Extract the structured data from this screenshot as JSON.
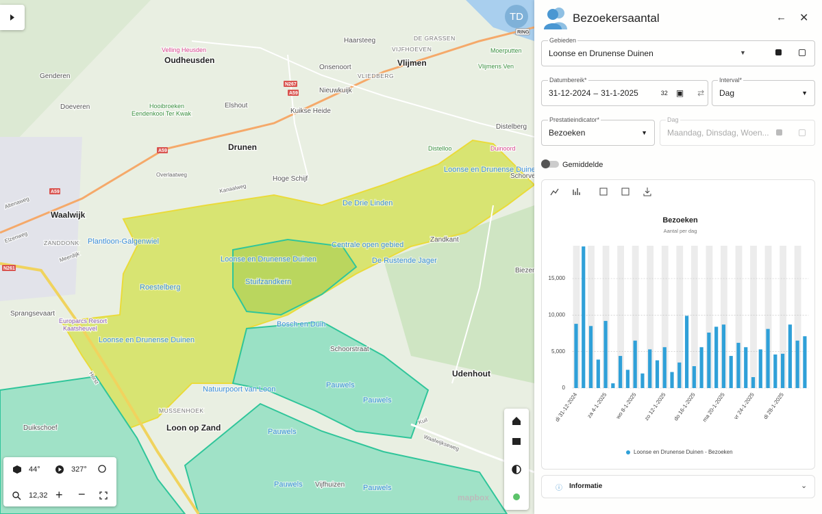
{
  "map": {
    "labels": [
      "Oudheusden",
      "Velling Heusden",
      "Genderen",
      "Hooibroeken",
      "Eendenkooi Ter Kwak",
      "Doeveren",
      "Elshout",
      "Kuikse Heide",
      "Nieuwkuijk",
      "Onsenoort",
      "Haarsteeg",
      "Vlijmen",
      "VIJFHOEVEN",
      "VLIEDBERG",
      "DE GRASSEN",
      "Moerputten",
      "Vlijmens Ven",
      "Drunen",
      "Distelloo",
      "Duinoord",
      "Distelberg",
      "Loonse en Drunense Duinen",
      "Hoge Schijf",
      "Overlaatweg",
      "De Drie Linden",
      "Waalwijk",
      "ZANDDONK",
      "Plantloon-Galgenwiel",
      "Zandkant",
      "Centrale open gebied",
      "Loonse en Drunense Duinen",
      "De Rustende Jager",
      "Biezenmo",
      "Stuifzandkern",
      "Roestelberg",
      "Sprangsevaart",
      "Europarcs Resort",
      "Kaatsheuvel",
      "Bosch en Duin",
      "Loonse en Drunense Duinen",
      "Schoorstraat",
      "Udenhout",
      "Natuurpoort van Loon",
      "MUSSENHOEK",
      "Pauwels",
      "Pauwels",
      "Loon op Zand",
      "Duikschoef",
      "Pauwels",
      "Pauwels",
      "Vijfhuizen",
      "Pauwels",
      "Schorvert",
      "Kanaalweg",
      "Altenaweg",
      "Elzenweg",
      "Meerdijk",
      "Horst",
      "Kuil",
      "Waalwijkseweg"
    ],
    "road_shields": [
      "A59",
      "N267",
      "A59",
      "A59",
      "N261",
      "RING"
    ],
    "attribution": "mapbox",
    "avatar": "TD",
    "controls": {
      "pitch": "44°",
      "bearing": "327°",
      "zoom": "12,32"
    }
  },
  "panel": {
    "title": "Bezoekersaantal",
    "gebieden": {
      "label": "Gebieden",
      "value": "Loonse en Drunense Duinen"
    },
    "datumbereik": {
      "label": "Datumbereik*",
      "start": "31-12-2024",
      "separator": "–",
      "end": "31-1-2025",
      "days": 32
    },
    "interval": {
      "label": "Interval*",
      "value": "Dag"
    },
    "prestatieindicator": {
      "label": "Prestatieindicator*",
      "value": "Bezoeken"
    },
    "dag": {
      "label": "Dag",
      "value": "Maandag, Dinsdag, Woen..."
    },
    "gemiddelde": "Gemiddelde",
    "chart": {
      "type": "bar",
      "title": "Bezoeken",
      "subtitle": "Aantal per dag",
      "categories": [
        "di 31-12-2024",
        null,
        null,
        null,
        "za 4-1-2025",
        null,
        null,
        null,
        "wo 8-1-2025",
        null,
        null,
        null,
        "zo 12-1-2025",
        null,
        null,
        null,
        "do 16-1-2025",
        null,
        null,
        null,
        "ma 20-1-2025",
        null,
        null,
        null,
        "vr 24-1-2025",
        null,
        null,
        null,
        "di 28-1-2025",
        null,
        null,
        null
      ],
      "series": [
        {
          "name": "Loonse en Drunense Duinen - Bezoeken",
          "color": "#2fa0d8",
          "values": [
            8800,
            19400,
            8500,
            3900,
            9200,
            650,
            4400,
            2500,
            6500,
            2000,
            5300,
            3800,
            5600,
            2200,
            3500,
            9900,
            3000,
            5600,
            7600,
            8400,
            8700,
            4400,
            6200,
            5600,
            1500,
            5300,
            8100,
            4600,
            4700,
            8700,
            6500,
            7100
          ]
        }
      ],
      "ylim": [
        0,
        19500
      ],
      "yticks": [
        0,
        {
          "value": 5000,
          "label": "5,000"
        },
        {
          "value": 10000,
          "label": "10,000"
        },
        {
          "value": 15000,
          "label": "15,000"
        }
      ],
      "grid": true
    },
    "informatie": "Informatie"
  }
}
